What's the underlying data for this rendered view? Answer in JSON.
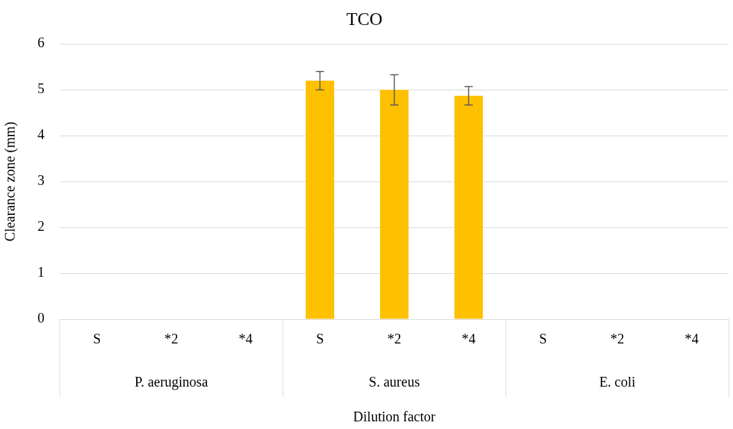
{
  "chart_data": {
    "type": "bar",
    "title": "TCO",
    "xlabel": "Dilution factor",
    "ylabel": "Clearance zone (mm)",
    "categories": [
      "S",
      "*2",
      "*4",
      "S",
      "*2",
      "*4",
      "S",
      "*2",
      "*4"
    ],
    "values": [
      0,
      0,
      0,
      5.2,
      5.0,
      4.87,
      0,
      0,
      0
    ],
    "errors": [
      null,
      null,
      null,
      0.2,
      0.33,
      0.2,
      null,
      null,
      null
    ],
    "color": "#ffc000",
    "ylim": [
      0,
      6
    ],
    "yticks": [
      0,
      1,
      2,
      3,
      4,
      5,
      6
    ],
    "grid": "y",
    "legend": false,
    "annotations": [
      "P. aeruginosa",
      "S. aureus",
      "E. coli"
    ]
  }
}
